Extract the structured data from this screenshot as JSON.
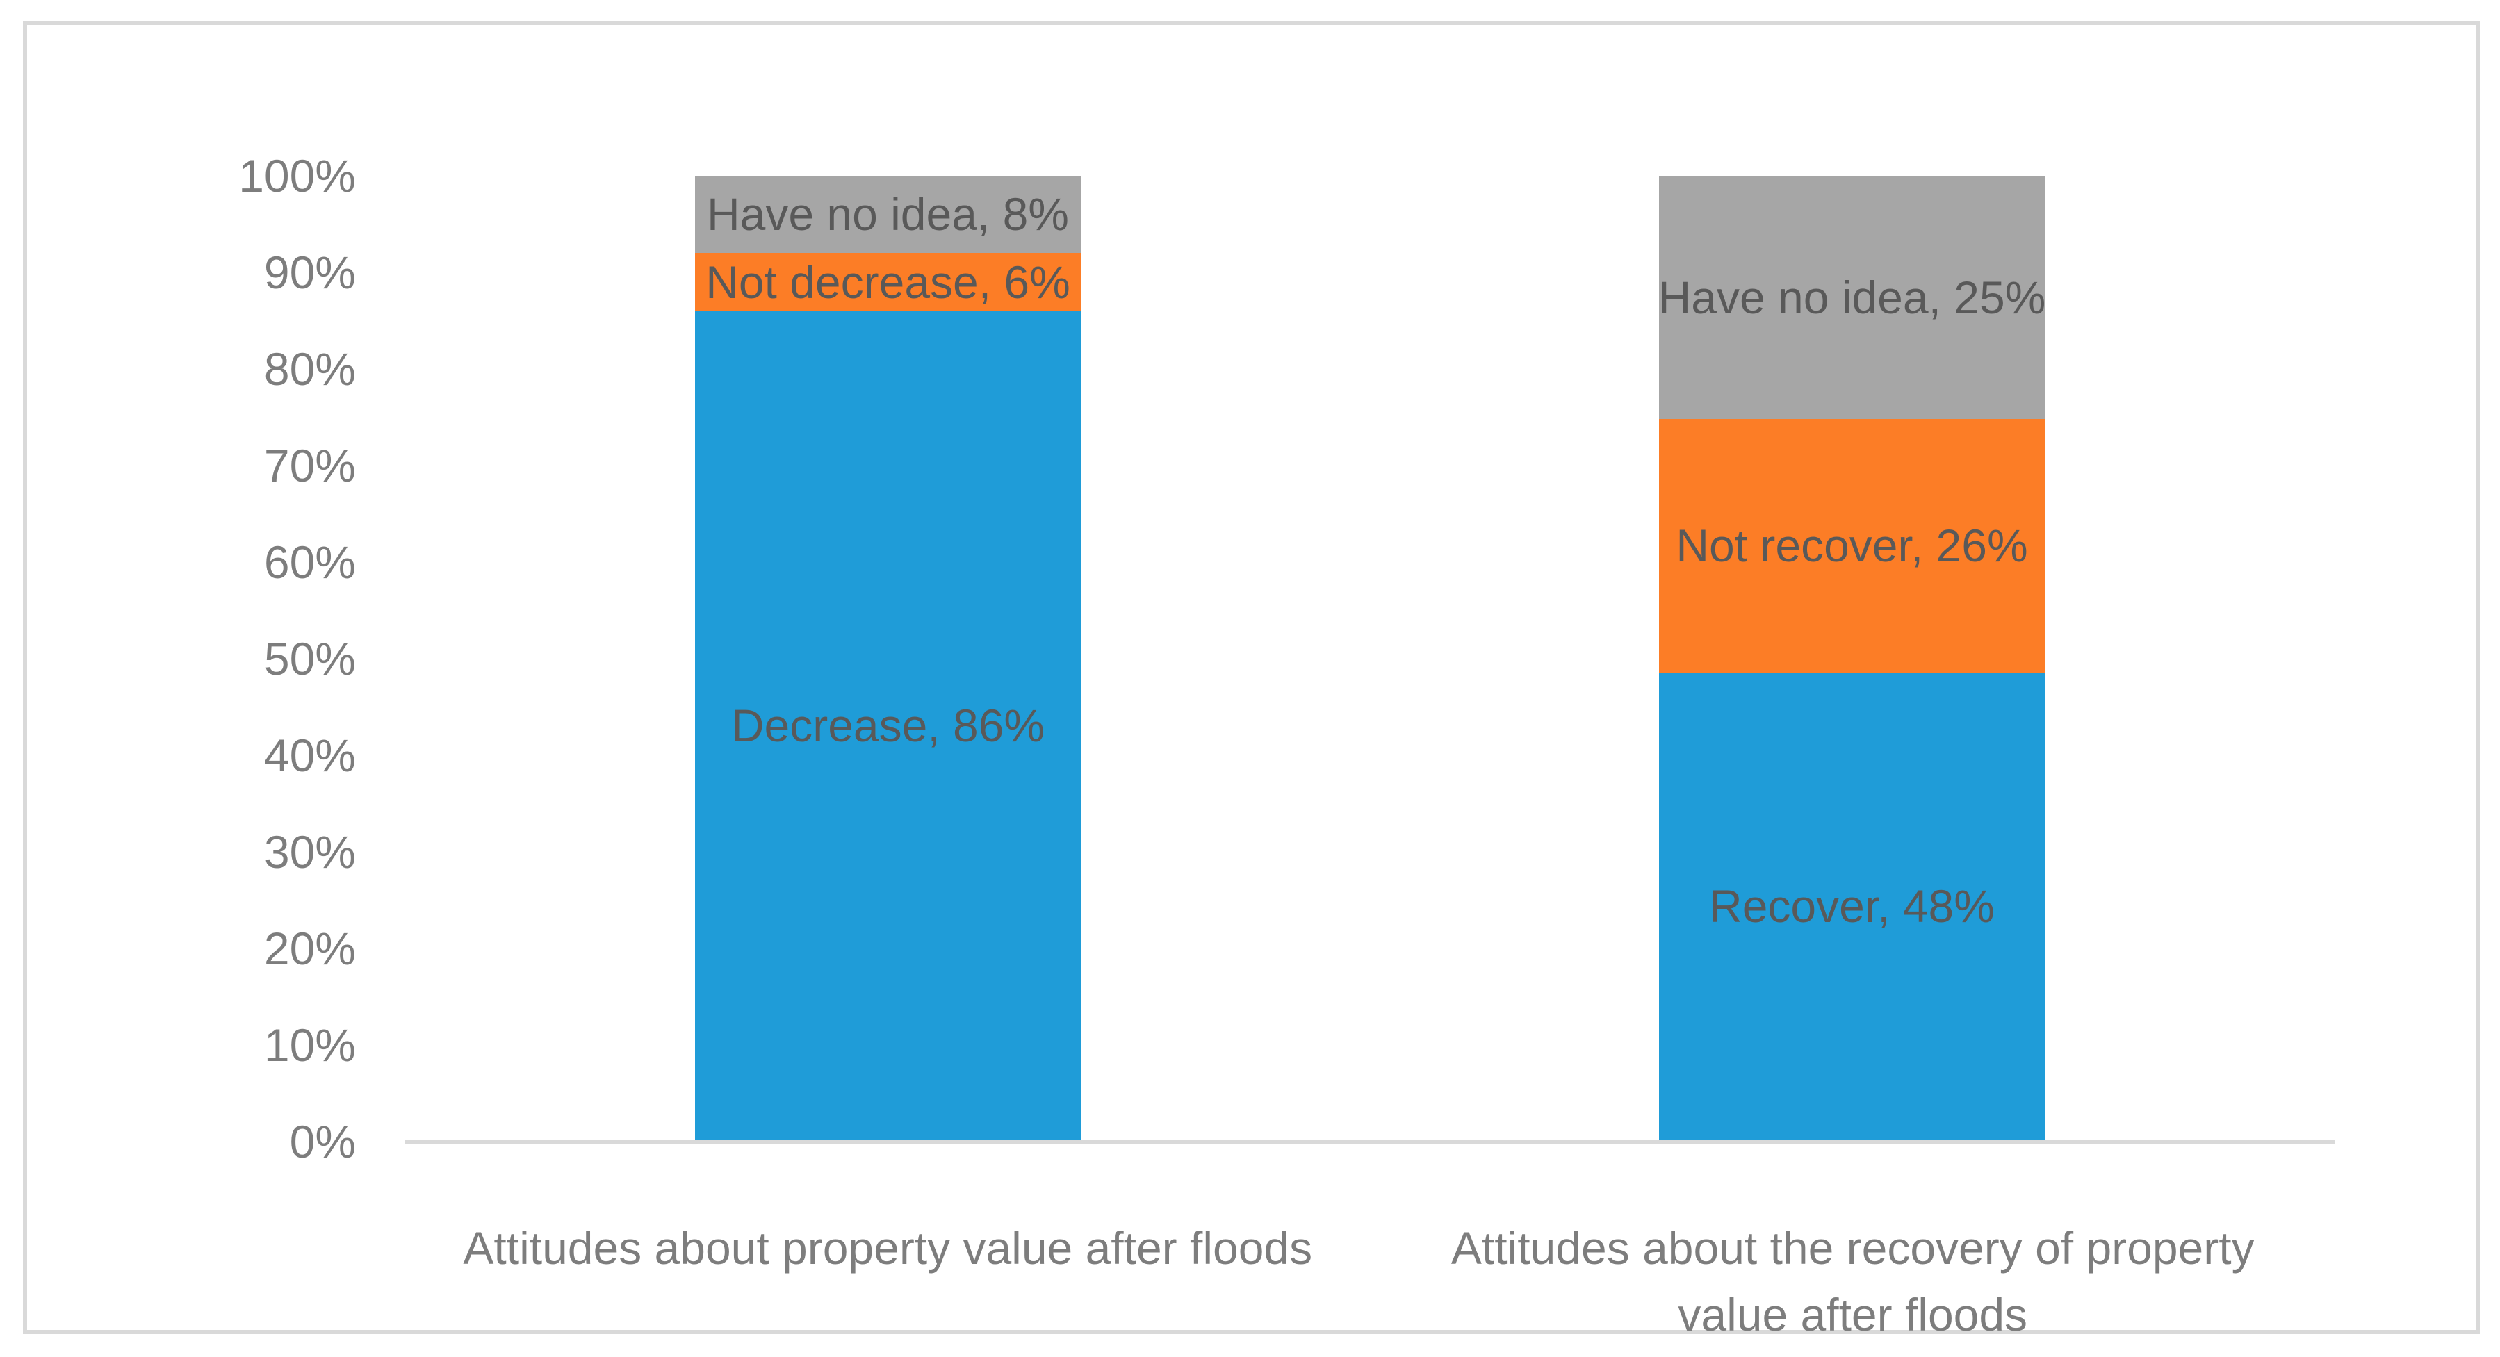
{
  "frame": {
    "background": "#FFFFFF",
    "border_color": "#D9D9D9"
  },
  "axis": {
    "line_color": "#D9D9D9",
    "tick_label_color": "#7D7D7D",
    "category_label_color": "#7D7D7D"
  },
  "chart_data": {
    "type": "bar",
    "stacked": true,
    "orientation": "vertical",
    "title": "",
    "xlabel": "",
    "ylabel": "",
    "ylim": [
      0,
      100
    ],
    "ytick_step": 10,
    "y_tick_labels": [
      "0%",
      "10%",
      "20%",
      "30%",
      "40%",
      "50%",
      "60%",
      "70%",
      "80%",
      "90%",
      "100%"
    ],
    "grid": false,
    "legend": "none",
    "data_label_color": "#595959",
    "categories": [
      "Attitudes about property value after floods",
      "Attitudes about the recovery of property\nvalue after floods"
    ],
    "bars": [
      {
        "category": "Attitudes about property value after floods",
        "segments": [
          {
            "name": "decrease",
            "label": "Decrease, 86%",
            "value": 86,
            "color": "#1F9CD8"
          },
          {
            "name": "not-decrease",
            "label": "Not decrease, 6%",
            "value": 6,
            "color": "#FC7D26"
          },
          {
            "name": "have-no-idea",
            "label": "Have no idea, 8%",
            "value": 8,
            "color": "#A6A6A6"
          }
        ]
      },
      {
        "category": "Attitudes about the recovery of property value after floods",
        "segments": [
          {
            "name": "recover",
            "label": "Recover, 48%",
            "value": 48,
            "color": "#1F9CD8"
          },
          {
            "name": "not-recover",
            "label": "Not recover, 26%",
            "value": 26,
            "color": "#FC7D26"
          },
          {
            "name": "have-no-idea",
            "label": "Have no idea, 25%",
            "value": 25,
            "color": "#A6A6A6"
          }
        ]
      }
    ],
    "series": [
      {
        "name": "positive-outcome",
        "color": "#1F9CD8",
        "values": [
          86,
          48
        ]
      },
      {
        "name": "negative-outcome",
        "color": "#FC7D26",
        "values": [
          6,
          26
        ]
      },
      {
        "name": "have-no-idea",
        "color": "#A6A6A6",
        "values": [
          8,
          25
        ]
      }
    ]
  }
}
